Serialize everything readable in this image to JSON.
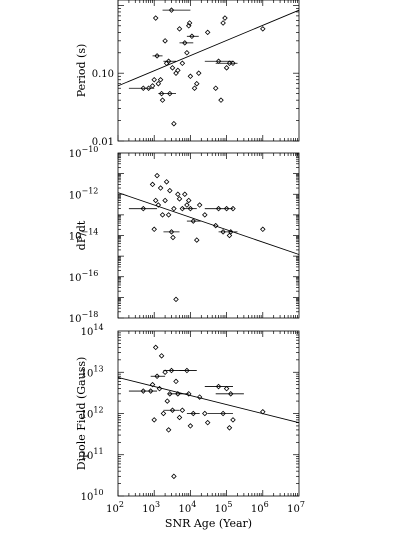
{
  "chart_data": [
    {
      "type": "scatter",
      "ylabel": "Period (s)",
      "xlabel": "",
      "xscale": "log",
      "yscale": "log",
      "xlim": [
        100,
        10000000
      ],
      "ylim": [
        0.01,
        1.2
      ],
      "yticks": [
        {
          "v": 0.01,
          "label": "0.01"
        },
        {
          "v": 0.1,
          "label": "0.10"
        }
      ],
      "xticks": [],
      "points": [
        {
          "x": 500,
          "y": 0.06,
          "xlo": 200,
          "xhi": 1000
        },
        {
          "x": 700,
          "y": 0.06
        },
        {
          "x": 900,
          "y": 0.065
        },
        {
          "x": 1000,
          "y": 0.08
        },
        {
          "x": 1100,
          "y": 0.65
        },
        {
          "x": 1200,
          "y": 0.18,
          "xlo": 900,
          "xhi": 1700
        },
        {
          "x": 1300,
          "y": 0.07
        },
        {
          "x": 1500,
          "y": 0.08
        },
        {
          "x": 1600,
          "y": 0.05
        },
        {
          "x": 1700,
          "y": 0.04
        },
        {
          "x": 2000,
          "y": 0.3
        },
        {
          "x": 2200,
          "y": 0.14
        },
        {
          "x": 2500,
          "y": 0.15,
          "xlo": 1800,
          "xhi": 4000
        },
        {
          "x": 2700,
          "y": 0.05,
          "xlo": 1300,
          "xhi": 4000
        },
        {
          "x": 3000,
          "y": 0.85,
          "xlo": 1700,
          "xhi": 10000
        },
        {
          "x": 3200,
          "y": 0.12
        },
        {
          "x": 3500,
          "y": 0.018
        },
        {
          "x": 4000,
          "y": 0.1
        },
        {
          "x": 4500,
          "y": 0.11
        },
        {
          "x": 5000,
          "y": 0.45
        },
        {
          "x": 6000,
          "y": 0.14
        },
        {
          "x": 7000,
          "y": 0.28,
          "xlo": 5000,
          "xhi": 12000
        },
        {
          "x": 8000,
          "y": 0.2
        },
        {
          "x": 9000,
          "y": 0.5
        },
        {
          "x": 9500,
          "y": 0.55
        },
        {
          "x": 10000,
          "y": 0.09
        },
        {
          "x": 11000,
          "y": 0.35,
          "xlo": 8000,
          "xhi": 17000
        },
        {
          "x": 13000,
          "y": 0.06
        },
        {
          "x": 15000,
          "y": 0.07
        },
        {
          "x": 17000,
          "y": 0.1
        },
        {
          "x": 30000,
          "y": 0.4
        },
        {
          "x": 50000,
          "y": 0.06
        },
        {
          "x": 60000,
          "y": 0.15,
          "xlo": 25000,
          "xhi": 150000
        },
        {
          "x": 70000,
          "y": 0.04
        },
        {
          "x": 80000,
          "y": 0.55
        },
        {
          "x": 90000,
          "y": 0.65
        },
        {
          "x": 100000,
          "y": 0.12
        },
        {
          "x": 120000,
          "y": 0.14,
          "xlo": 50000,
          "xhi": 200000
        },
        {
          "x": 150000,
          "y": 0.14
        },
        {
          "x": 1000000,
          "y": 0.45
        }
      ],
      "fit": [
        [
          100,
          0.065
        ],
        [
          10000000,
          0.85
        ]
      ]
    },
    {
      "type": "scatter",
      "ylabel": "dP/dt",
      "xlabel": "",
      "xscale": "log",
      "yscale": "log",
      "xlim": [
        100,
        10000000
      ],
      "ylim": [
        1e-18,
        1e-10
      ],
      "yticks": [
        {
          "v": 1e-10,
          "label": "10",
          "exp": "−10"
        },
        {
          "v": 1e-12,
          "label": "10",
          "exp": "−12"
        },
        {
          "v": 1e-14,
          "label": "10",
          "exp": "−14"
        },
        {
          "v": 1e-16,
          "label": "10",
          "exp": "−16"
        },
        {
          "v": 1e-18,
          "label": "10",
          "exp": "−18"
        }
      ],
      "xticks": [],
      "points": [
        {
          "x": 500,
          "y": 2e-13,
          "xlo": 200,
          "xhi": 1200
        },
        {
          "x": 900,
          "y": 3e-12
        },
        {
          "x": 1000,
          "y": 2e-14
        },
        {
          "x": 1100,
          "y": 5e-13
        },
        {
          "x": 1200,
          "y": 8e-12
        },
        {
          "x": 1300,
          "y": 3e-13
        },
        {
          "x": 1500,
          "y": 2e-12
        },
        {
          "x": 1700,
          "y": 1e-13
        },
        {
          "x": 2000,
          "y": 5e-13
        },
        {
          "x": 2200,
          "y": 4e-12
        },
        {
          "x": 2500,
          "y": 1e-13
        },
        {
          "x": 2700,
          "y": 1.5e-12
        },
        {
          "x": 3000,
          "y": 1.5e-14,
          "xlo": 1800,
          "xhi": 5000
        },
        {
          "x": 3300,
          "y": 8e-15
        },
        {
          "x": 3500,
          "y": 2e-13
        },
        {
          "x": 4000,
          "y": 8e-18
        },
        {
          "x": 4500,
          "y": 1e-12
        },
        {
          "x": 5000,
          "y": 6e-13
        },
        {
          "x": 6000,
          "y": 2e-13
        },
        {
          "x": 7000,
          "y": 1e-12
        },
        {
          "x": 8000,
          "y": 3e-13
        },
        {
          "x": 9000,
          "y": 5e-13
        },
        {
          "x": 10000,
          "y": 2e-13,
          "xlo": 6000,
          "xhi": 15000
        },
        {
          "x": 12000,
          "y": 5e-14,
          "xlo": 8000,
          "xhi": 20000
        },
        {
          "x": 15000,
          "y": 6e-15
        },
        {
          "x": 18000,
          "y": 3e-13
        },
        {
          "x": 25000,
          "y": 1e-13
        },
        {
          "x": 50000,
          "y": 3e-14
        },
        {
          "x": 60000,
          "y": 2e-13,
          "xlo": 25000,
          "xhi": 150000
        },
        {
          "x": 80000,
          "y": 1.5e-14
        },
        {
          "x": 100000,
          "y": 2e-13
        },
        {
          "x": 120000,
          "y": 1e-14
        },
        {
          "x": 150000,
          "y": 2e-13
        },
        {
          "x": 130000,
          "y": 1.5e-14,
          "xlo": 60000,
          "xhi": 200000
        },
        {
          "x": 1000000,
          "y": 2e-14
        }
      ],
      "fit": [
        [
          100,
          1.2e-12
        ],
        [
          10000000,
          1.2e-15
        ]
      ]
    },
    {
      "type": "scatter",
      "ylabel": "Dipole Field (Gauss)",
      "xlabel": "SNR Age (Year)",
      "xscale": "log",
      "yscale": "log",
      "xlim": [
        100,
        10000000
      ],
      "ylim": [
        10000000000.0,
        100000000000000.0
      ],
      "yticks": [
        {
          "v": 100000000000000.0,
          "label": "10",
          "exp": "14"
        },
        {
          "v": 10000000000000.0,
          "label": "10",
          "exp": "13"
        },
        {
          "v": 1000000000000.0,
          "label": "10",
          "exp": "12"
        },
        {
          "v": 100000000000.0,
          "label": "10",
          "exp": "11"
        },
        {
          "v": 10000000000.0,
          "label": "10",
          "exp": "10"
        }
      ],
      "xticks": [
        {
          "v": 100,
          "label": "10",
          "exp": "2"
        },
        {
          "v": 1000,
          "label": "10",
          "exp": "3"
        },
        {
          "v": 10000,
          "label": "10",
          "exp": "4"
        },
        {
          "v": 100000,
          "label": "10",
          "exp": "5"
        },
        {
          "v": 1000000,
          "label": "10",
          "exp": "6"
        },
        {
          "v": 10000000,
          "label": "10",
          "exp": "7"
        }
      ],
      "points": [
        {
          "x": 500,
          "y": 3500000000000.0,
          "xlo": 200,
          "xhi": 1200
        },
        {
          "x": 800,
          "y": 3500000000000.0
        },
        {
          "x": 900,
          "y": 5000000000000.0
        },
        {
          "x": 1000,
          "y": 700000000000.0
        },
        {
          "x": 1100,
          "y": 40000000000000.0
        },
        {
          "x": 1200,
          "y": 8000000000000.0,
          "xlo": 800,
          "xhi": 2000
        },
        {
          "x": 1400,
          "y": 4000000000000.0
        },
        {
          "x": 1600,
          "y": 25000000000000.0
        },
        {
          "x": 1800,
          "y": 1000000000000.0
        },
        {
          "x": 2000,
          "y": 10000000000000.0
        },
        {
          "x": 2300,
          "y": 2000000000000.0
        },
        {
          "x": 2500,
          "y": 400000000000.0
        },
        {
          "x": 2700,
          "y": 3000000000000.0
        },
        {
          "x": 3000,
          "y": 11000000000000.0,
          "xlo": 1800,
          "xhi": 7000
        },
        {
          "x": 3200,
          "y": 1200000000000.0,
          "xlo": 1800,
          "xhi": 5000
        },
        {
          "x": 3500,
          "y": 30000000000.0
        },
        {
          "x": 4000,
          "y": 6000000000000.0
        },
        {
          "x": 4500,
          "y": 3000000000000.0,
          "xlo": 2500,
          "xhi": 9000
        },
        {
          "x": 5000,
          "y": 800000000000.0
        },
        {
          "x": 6000,
          "y": 1200000000000.0
        },
        {
          "x": 8000,
          "y": 11000000000000.0,
          "xlo": 5000,
          "xhi": 15000
        },
        {
          "x": 9000,
          "y": 3000000000000.0
        },
        {
          "x": 10000,
          "y": 500000000000.0
        },
        {
          "x": 12000,
          "y": 1000000000000.0,
          "xlo": 8000,
          "xhi": 18000
        },
        {
          "x": 18000,
          "y": 2500000000000.0
        },
        {
          "x": 25000,
          "y": 1000000000000.0
        },
        {
          "x": 30000,
          "y": 600000000000.0
        },
        {
          "x": 60000,
          "y": 4500000000000.0,
          "xlo": 25000,
          "xhi": 150000
        },
        {
          "x": 80000,
          "y": 1000000000000.0,
          "xlo": 30000,
          "xhi": 150000
        },
        {
          "x": 100000,
          "y": 4000000000000.0
        },
        {
          "x": 120000,
          "y": 450000000000.0
        },
        {
          "x": 130000,
          "y": 3000000000000.0,
          "xlo": 50000,
          "xhi": 300000
        },
        {
          "x": 150000,
          "y": 700000000000.0
        },
        {
          "x": 1000000,
          "y": 1100000000000.0
        }
      ],
      "fit": [
        [
          100,
          7500000000000.0
        ],
        [
          10000000,
          600000000000.0
        ]
      ]
    }
  ]
}
